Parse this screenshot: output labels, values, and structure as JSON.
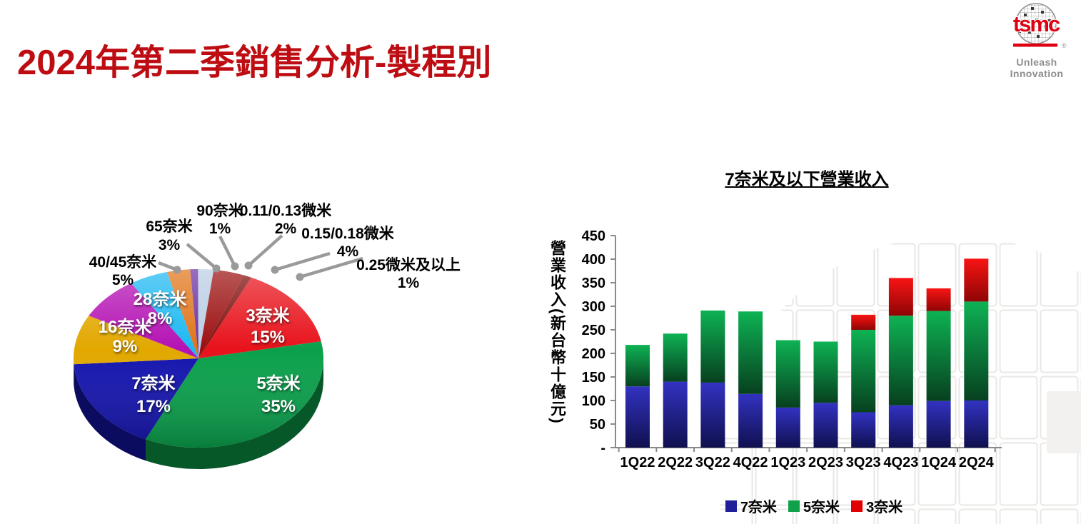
{
  "slide": {
    "title": "2024年第二季銷售分析-製程別",
    "logo": {
      "brand": "tsmc",
      "registered": "®",
      "tagline": "Unleash Innovation"
    }
  },
  "chart_data": [
    {
      "type": "pie",
      "style": "3d",
      "unit": "%",
      "start_angle_deg": 25,
      "slices": [
        {
          "label": "3奈米",
          "value": 15,
          "pct_text": "15%",
          "color": "#E8121B",
          "label_style": "inside"
        },
        {
          "label": "5奈米",
          "value": 35,
          "pct_text": "35%",
          "color": "#0AA04B",
          "label_style": "inside"
        },
        {
          "label": "7奈米",
          "value": 17,
          "pct_text": "17%",
          "color": "#1414AE",
          "label_style": "inside"
        },
        {
          "label": "16奈米",
          "value": 9,
          "pct_text": "9%",
          "color": "#E2A800",
          "label_style": "inside"
        },
        {
          "label": "28奈米",
          "value": 8,
          "pct_text": "8%",
          "color": "#B412B4",
          "label_style": "inside"
        },
        {
          "label": "40/45奈米",
          "value": 5,
          "pct_text": "5%",
          "color": "#1CB8F2",
          "label_style": "outside"
        },
        {
          "label": "65奈米",
          "value": 3,
          "pct_text": "3%",
          "color": "#E07318",
          "label_style": "outside"
        },
        {
          "label": "90奈米",
          "value": 1,
          "pct_text": "1%",
          "color": "#6B2FA0",
          "label_style": "outside"
        },
        {
          "label": "0.11/0.13微米",
          "value": 2,
          "pct_text": "2%",
          "color": "#B9CDE4",
          "label_style": "outside"
        },
        {
          "label": "0.15/0.18微米",
          "value": 4,
          "pct_text": "4%",
          "color": "#9B0F0F",
          "label_style": "outside"
        },
        {
          "label": "0.25微米及以上",
          "value": 1,
          "pct_text": "1%",
          "color": "#7E0C0C",
          "label_style": "outside"
        }
      ]
    },
    {
      "type": "bar",
      "stacked": true,
      "title": "7奈米及以下營業收入",
      "ylabel": "營業收入(新台幣十億元)",
      "categories": [
        "1Q22",
        "2Q22",
        "3Q22",
        "4Q22",
        "1Q23",
        "2Q23",
        "3Q23",
        "4Q23",
        "1Q24",
        "2Q24"
      ],
      "series": [
        {
          "name": "7奈米",
          "color": "#1F1F9C",
          "grad": [
            "#3232C2",
            "#10104F"
          ],
          "values": [
            130,
            140,
            138,
            114,
            85,
            95,
            75,
            90,
            99,
            100
          ]
        },
        {
          "name": "5奈米",
          "color": "#12A14B",
          "grad": [
            "#0EB254",
            "#07401F"
          ],
          "values": [
            88,
            102,
            153,
            175,
            143,
            130,
            175,
            190,
            191,
            210
          ]
        },
        {
          "name": "3奈米",
          "color": "#E00000",
          "grad": [
            "#F81414",
            "#8F0505"
          ],
          "values": [
            0,
            0,
            0,
            0,
            0,
            0,
            32,
            80,
            48,
            91
          ]
        }
      ],
      "ylim": [
        0,
        450
      ],
      "ytick_step": 50,
      "ytick_labels": [
        "-",
        "50",
        "100",
        "150",
        "200",
        "250",
        "300",
        "350",
        "400",
        "450"
      ],
      "legend_position": "bottom",
      "grid": false
    }
  ]
}
